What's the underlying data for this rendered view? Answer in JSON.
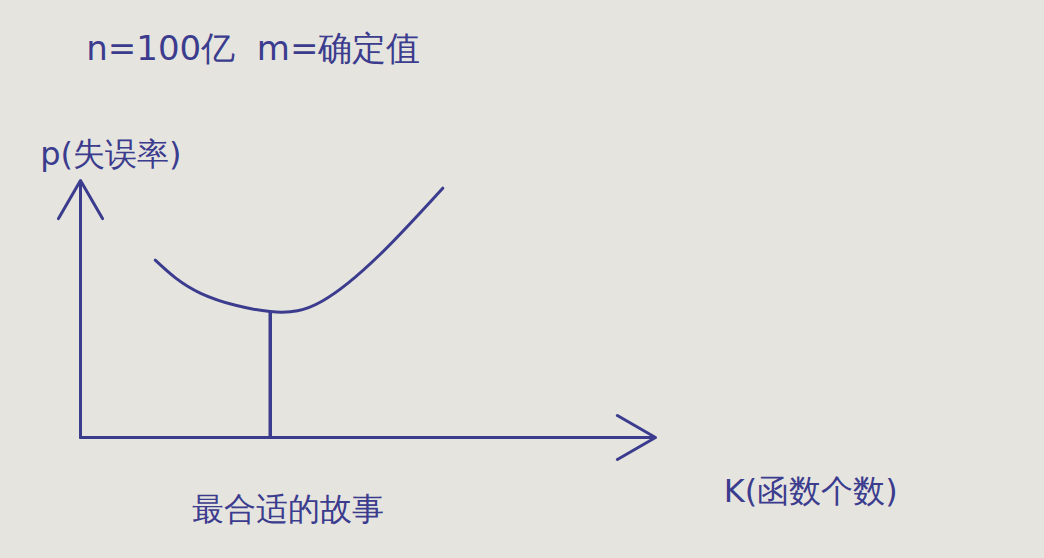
{
  "chart_data": {
    "type": "line",
    "title": "n=100亿  m=确定值",
    "x_label": "K(函数个数)",
    "y_label": "p(失误率)",
    "x": [
      1.3,
      2.1,
      3.3,
      4.2,
      5.2,
      6.3
    ],
    "values": [
      6.9,
      5.6,
      4.9,
      5.3,
      7.1,
      9.7
    ],
    "color": "#3b3c8e",
    "xlim": [
      0,
      10
    ],
    "ylim": [
      0,
      10
    ],
    "xticks": [],
    "yticks": [],
    "tick_labels": false,
    "grid": false,
    "optimum": {
      "x": 3.3,
      "y": 4.9,
      "label": "最合适的故事"
    }
  }
}
